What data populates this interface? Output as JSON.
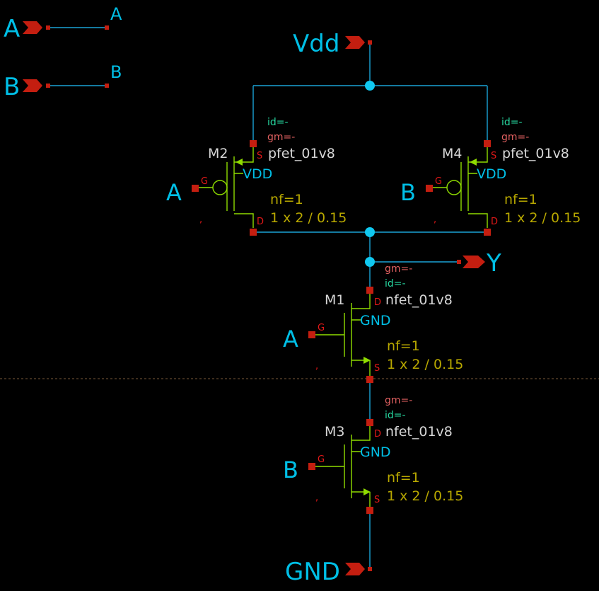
{
  "schematic": {
    "pins": {
      "a_left": "A",
      "a_right": "A",
      "b_left": "B",
      "b_right": "B",
      "vdd": "Vdd",
      "y": "Y",
      "gnd": "GND"
    },
    "gate_nets": {
      "m2": "A",
      "m4": "B",
      "m1": "A",
      "m3": "B"
    },
    "devices": {
      "m2": {
        "name": "M2",
        "model": "pfet_01v8",
        "bulk": "VDD",
        "nf": "nf=1",
        "size": "1 x 2 / 0.15",
        "id": "id=-",
        "gm": "gm=-",
        "g": "G",
        "s": "S",
        "d": "D",
        "mark": ","
      },
      "m4": {
        "name": "M4",
        "model": "pfet_01v8",
        "bulk": "VDD",
        "nf": "nf=1",
        "size": "1 x 2 / 0.15",
        "id": "id=-",
        "gm": "gm=-",
        "g": "G",
        "s": "S",
        "d": "D",
        "mark": ","
      },
      "m1": {
        "name": "M1",
        "model": "nfet_01v8",
        "bulk": "GND",
        "nf": "nf=1",
        "size": "1 x 2 / 0.15",
        "id": "id=-",
        "gm": "gm=-",
        "g": "G",
        "s": "S",
        "d": "D",
        "mark": ","
      },
      "m3": {
        "name": "M3",
        "model": "nfet_01v8",
        "bulk": "GND",
        "nf": "nf=1",
        "size": "1 x 2 / 0.15",
        "id": "id=-",
        "gm": "gm=-",
        "g": "G",
        "s": "S",
        "d": "D",
        "mark": ","
      }
    },
    "colors": {
      "background": "#000000",
      "wire": "#1aa3d6",
      "pin_text": "#00bfe6",
      "terminal": "#c41e10",
      "device_symbol": "#8fdc00",
      "param_text": "#b8a800",
      "gm_text": "#e06060",
      "id_text": "#27d8a0"
    }
  }
}
